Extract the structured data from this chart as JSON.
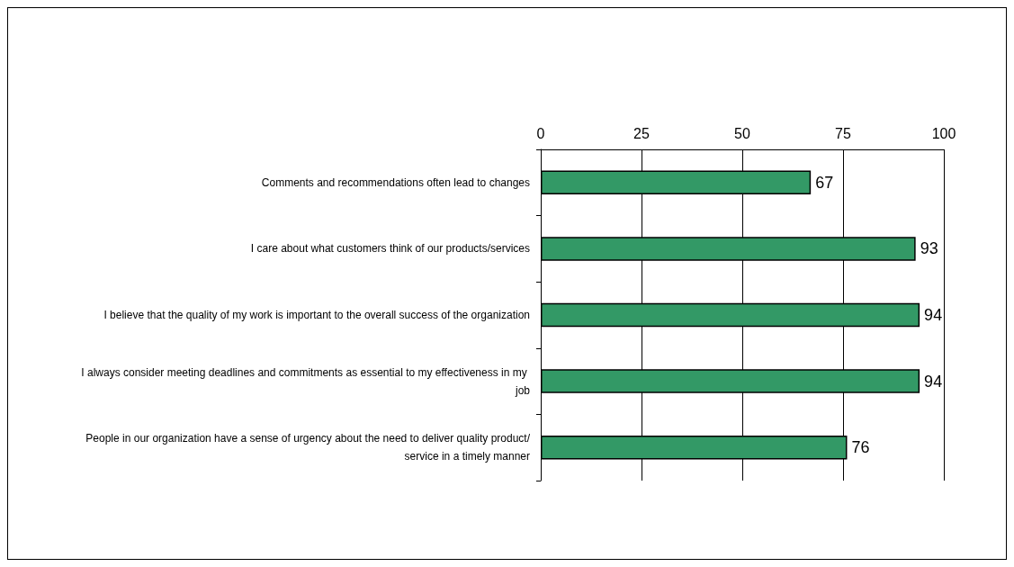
{
  "chart_data": {
    "type": "bar",
    "orientation": "horizontal",
    "categories": [
      "Comments and recommendations often lead to changes",
      "I care about what customers think of our products/services",
      "I believe that the quality of my work is important to the overall success of the organization",
      "I always consider meeting deadlines and commitments as essential to my effectiveness in my job",
      "People in our organization have a sense of urgency about the need to deliver quality product/service in a timely manner"
    ],
    "values": [
      67,
      93,
      94,
      94,
      76
    ],
    "color": "#339966",
    "xlim": [
      0,
      100
    ],
    "xticks": [
      0,
      25,
      50,
      75,
      100
    ],
    "grid": "x",
    "data_labels": true
  }
}
